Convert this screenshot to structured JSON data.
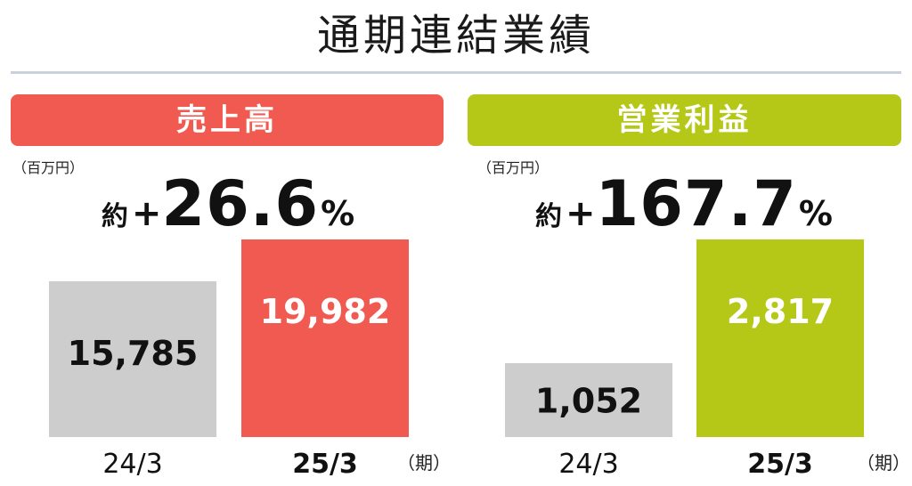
{
  "page": {
    "title": "通期連結業績"
  },
  "chart_data": [
    {
      "type": "bar",
      "title": "売上高",
      "unit": "（百万円）",
      "categories": [
        "24/3",
        "25/3"
      ],
      "values": [
        15785,
        19982
      ],
      "value_labels": [
        "15,785",
        "19,982"
      ],
      "growth": {
        "prefix": "約",
        "sign": "+",
        "value": "26.6",
        "suffix": "%"
      },
      "period_unit": "（期）",
      "colors": {
        "header": "#f05a50",
        "previous": "#cdcdcd",
        "current": "#f05a50",
        "prev_label": "#111111",
        "cur_label": "#ffffff"
      }
    },
    {
      "type": "bar",
      "title": "営業利益",
      "unit": "（百万円）",
      "categories": [
        "24/3",
        "25/3"
      ],
      "values": [
        1052,
        2817
      ],
      "value_labels": [
        "1,052",
        "2,817"
      ],
      "growth": {
        "prefix": "約",
        "sign": "+",
        "value": "167.7",
        "suffix": "%"
      },
      "period_unit": "（期）",
      "colors": {
        "header": "#b5c817",
        "previous": "#cdcdcd",
        "current": "#b5c817",
        "prev_label": "#111111",
        "cur_label": "#ffffff"
      }
    }
  ]
}
